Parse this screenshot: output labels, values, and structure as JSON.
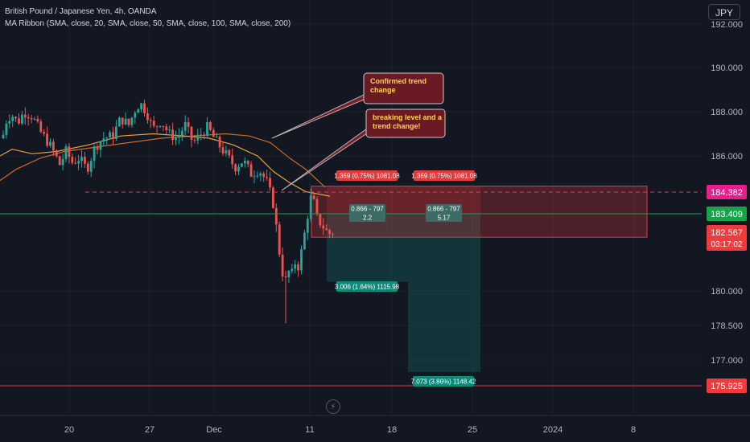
{
  "header": {
    "symbol": "British Pound / Japanese Yen, 4h, OANDA",
    "indicator": "MA Ribbon (SMA, close, 20, SMA, close, 50, SMA, close, 100, SMA, close, 200)"
  },
  "currency_button": "JPY",
  "lightning_icon": "lightning-icon",
  "colors": {
    "background": "#131722",
    "up": "#26a69a",
    "down": "#ef5350",
    "ma20": "#e8a33d",
    "ma50": "#c86b26",
    "red_zone": "#e13b3b",
    "target_zone": "#0e3a3a"
  },
  "chart_data": {
    "type": "candlestick",
    "x_ticks": [
      "20",
      "27",
      "Dec",
      "11",
      "18",
      "25",
      "2024",
      "8"
    ],
    "y_ticks": [
      "192.000",
      "190.000",
      "188.000",
      "186.000",
      "180.000",
      "178.500",
      "177.000"
    ],
    "y_scale": "non-linear (compressed below 182)",
    "candles_summary": {
      "period_high": 188.6,
      "period_low": 178.6,
      "late_nov_range": [
        186.2,
        188.5
      ],
      "selloff_low_dec": 178.6,
      "last": 182.567
    },
    "price_labels": [
      {
        "value": "184.382",
        "color": "#e91e8c"
      },
      {
        "value": "183.409",
        "color": "#16a34a"
      },
      {
        "value": "182.567",
        "color": "#ef3b3b",
        "countdown": "03:17:02"
      },
      {
        "value": "175.925",
        "color": "#ef3b3b"
      }
    ],
    "horizontal_lines": [
      {
        "price": 184.382,
        "style": "dashed",
        "color": "#e13b50"
      },
      {
        "price": 183.409,
        "style": "solid",
        "color": "#16a34a"
      },
      {
        "price": 175.925,
        "style": "solid",
        "color": "#e13b3b"
      }
    ],
    "annotations": [
      {
        "text": "Confirmed trend change"
      },
      {
        "text": "breaking level and a trend change!"
      }
    ],
    "position_tools": [
      {
        "stop_label": "1.369 (0.75%) 1081.08",
        "center_label": [
          "0.866 - 797",
          "2.2"
        ],
        "target_label": "3.006 (1.64%) 1115.98"
      },
      {
        "stop_label": "1.369 (0.75%) 1081.08",
        "center_label": [
          "0.866 - 797",
          "5.17"
        ],
        "target_label": "7.073 (3.86%) 1148.42"
      }
    ]
  }
}
